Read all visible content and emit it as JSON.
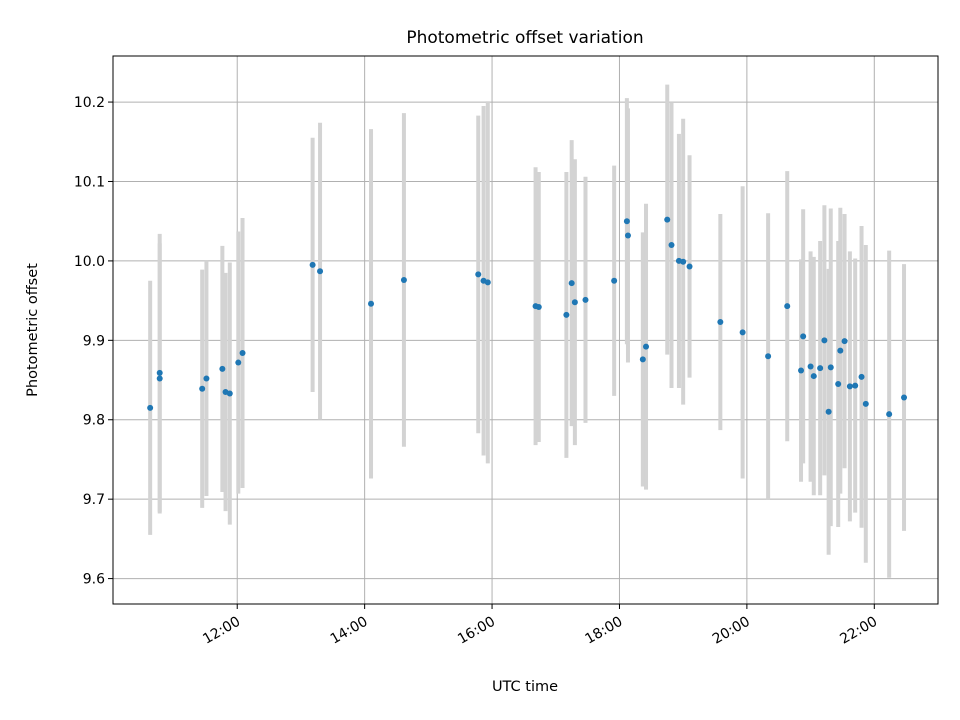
{
  "chart_data": {
    "type": "scatter",
    "title": "Photometric offset variation",
    "xlabel": "UTC time",
    "ylabel": "Photometric offset",
    "x_ticks": [
      "12:00",
      "14:00",
      "16:00",
      "18:00",
      "20:00",
      "22:00"
    ],
    "x_tick_hours": [
      12,
      14,
      16,
      18,
      20,
      22
    ],
    "y_ticks": [
      "9.6",
      "9.7",
      "9.8",
      "9.9",
      "10.0",
      "10.1",
      "10.2"
    ],
    "y_tick_values": [
      9.6,
      9.7,
      9.8,
      9.9,
      10.0,
      10.1,
      10.2
    ],
    "xlim": [
      "10:03",
      "23:00"
    ],
    "ylim": [
      9.568,
      10.258
    ],
    "grid": true,
    "marker_color": "#1f77b4",
    "errorbar_color": "#d3d3d3",
    "series": [
      {
        "x": [
          "10:38",
          "10:47",
          "10:47",
          "11:27",
          "11:31",
          "11:46",
          "11:49",
          "11:53",
          "12:01",
          "12:05",
          "13:11",
          "13:18",
          "14:06",
          "14:37",
          "15:47",
          "15:52",
          "15:56",
          "16:41",
          "16:44",
          "17:10",
          "17:15",
          "17:18",
          "17:28",
          "17:55",
          "18:07",
          "18:08",
          "18:22",
          "18:25",
          "18:45",
          "18:49",
          "18:56",
          "19:00",
          "19:06",
          "19:35",
          "19:56",
          "20:20",
          "20:38",
          "20:51",
          "20:53",
          "21:00",
          "21:03",
          "21:09",
          "21:13",
          "21:17",
          "21:19",
          "21:26",
          "21:28",
          "21:32",
          "21:37",
          "21:42",
          "21:48",
          "21:52",
          "22:14",
          "22:28"
        ],
        "y": [
          9.815,
          9.859,
          9.852,
          9.839,
          9.852,
          9.864,
          9.835,
          9.833,
          9.872,
          9.884,
          9.995,
          9.987,
          9.946,
          9.976,
          9.983,
          9.975,
          9.973,
          9.943,
          9.942,
          9.932,
          9.972,
          9.948,
          9.951,
          9.975,
          10.05,
          10.032,
          9.876,
          9.892,
          10.052,
          10.02,
          10.0,
          9.999,
          9.993,
          9.923,
          9.91,
          9.88,
          9.943,
          9.862,
          9.905,
          9.867,
          9.855,
          9.865,
          9.9,
          9.81,
          9.866,
          9.845,
          9.887,
          9.899,
          9.842,
          9.843,
          9.854,
          9.82,
          9.807,
          9.828
        ],
        "yerr": [
          0.16,
          0.175,
          0.17,
          0.15,
          0.148,
          0.155,
          0.15,
          0.165,
          0.165,
          0.17,
          0.16,
          0.187,
          0.22,
          0.21,
          0.2,
          0.22,
          0.228,
          0.175,
          0.17,
          0.18,
          0.18,
          0.18,
          0.155,
          0.145,
          0.155,
          0.16,
          0.16,
          0.18,
          0.17,
          0.18,
          0.16,
          0.18,
          0.14,
          0.136,
          0.184,
          0.18,
          0.17,
          0.14,
          0.16,
          0.145,
          0.15,
          0.16,
          0.17,
          0.18,
          0.2,
          0.18,
          0.18,
          0.16,
          0.17,
          0.16,
          0.19,
          0.2,
          0.206,
          0.168
        ]
      }
    ]
  }
}
